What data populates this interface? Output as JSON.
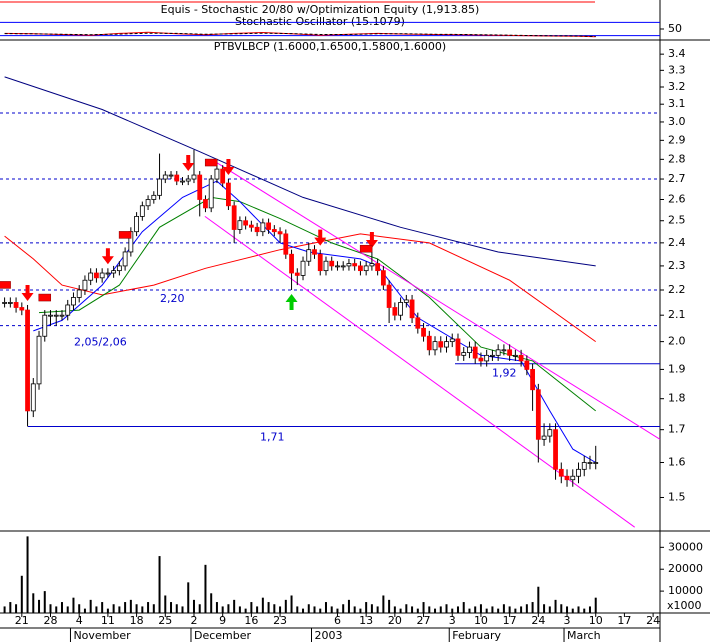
{
  "chart_data": [
    {
      "type": "line",
      "title": "Equis - Stochastic 20/80  w/Optimization Equity (1,913.85)",
      "subtitle": "Stochastic Oscillator (15.1079)",
      "xlim": [
        -0.8,
        114.2
      ],
      "ylim": [
        0,
        100
      ],
      "yticks": [
        50
      ],
      "levels": [
        20,
        80
      ],
      "x": [
        0,
        5,
        10,
        15,
        20,
        25,
        30,
        35,
        40,
        45,
        50,
        55,
        60,
        65,
        70,
        75,
        80,
        85,
        90,
        95,
        100,
        103
      ],
      "series": [
        {
          "color": "#ff0000",
          "values": [
            30,
            28,
            25,
            22,
            30,
            35,
            28,
            24,
            30,
            34,
            28,
            22,
            26,
            30,
            27,
            25,
            24,
            22,
            20,
            18,
            17,
            15
          ]
        },
        {
          "color": "#000000",
          "dashed": true,
          "values": [
            29,
            28,
            26,
            24,
            27,
            31,
            30,
            26,
            28,
            31,
            29,
            25,
            25,
            28,
            28,
            26,
            25,
            23,
            21,
            19,
            18,
            16
          ]
        }
      ]
    },
    {
      "type": "candlestick",
      "title": "PTBVLBCP (1.6000,1.6500,1.5800,1.6000)",
      "log": true,
      "xlim": [
        -0.8,
        114.2
      ],
      "ylim": [
        1.41,
        3.49
      ],
      "yticks": [
        1.5,
        1.6,
        1.7,
        1.8,
        1.9,
        {
          "value": 2,
          "label": "2.0"
        },
        2.1,
        2.2,
        2.3,
        2.4,
        2.5,
        2.6,
        2.7,
        2.8,
        2.9,
        {
          "value": 3,
          "label": "3.0"
        },
        3.1,
        3.2,
        3.3,
        3.4
      ],
      "up_color": "#ffffff",
      "down_color": "#ff0000",
      "candles": [
        [
          2.15,
          2.17,
          2.13,
          2.15
        ],
        [
          2.15,
          2.17,
          2.13,
          2.15
        ],
        [
          2.15,
          2.17,
          2.11,
          2.13
        ],
        [
          2.13,
          2.15,
          2.1,
          2.12
        ],
        [
          2.12,
          2.14,
          1.71,
          1.76
        ],
        [
          1.76,
          1.87,
          1.74,
          1.85
        ],
        [
          1.85,
          2.04,
          1.83,
          2.02
        ],
        [
          2.02,
          2.12,
          2.0,
          2.1
        ],
        [
          2.1,
          2.12,
          2.06,
          2.1
        ],
        [
          2.1,
          2.12,
          2.06,
          2.1
        ],
        [
          2.1,
          2.12,
          2.08,
          2.1
        ],
        [
          2.1,
          2.16,
          2.08,
          2.14
        ],
        [
          2.14,
          2.19,
          2.12,
          2.17
        ],
        [
          2.17,
          2.22,
          2.15,
          2.2
        ],
        [
          2.2,
          2.26,
          2.18,
          2.24
        ],
        [
          2.24,
          2.29,
          2.22,
          2.27
        ],
        [
          2.27,
          2.29,
          2.23,
          2.25
        ],
        [
          2.25,
          2.29,
          2.23,
          2.27
        ],
        [
          2.27,
          2.29,
          2.25,
          2.27
        ],
        [
          2.27,
          2.3,
          2.25,
          2.28
        ],
        [
          2.28,
          2.32,
          2.26,
          2.3
        ],
        [
          2.3,
          2.38,
          2.28,
          2.36
        ],
        [
          2.36,
          2.47,
          2.34,
          2.45
        ],
        [
          2.45,
          2.54,
          2.43,
          2.52
        ],
        [
          2.52,
          2.59,
          2.5,
          2.57
        ],
        [
          2.57,
          2.62,
          2.55,
          2.6
        ],
        [
          2.6,
          2.64,
          2.58,
          2.62
        ],
        [
          2.62,
          2.83,
          2.6,
          2.7
        ],
        [
          2.7,
          2.74,
          2.68,
          2.72
        ],
        [
          2.72,
          2.74,
          2.7,
          2.72
        ],
        [
          2.72,
          2.74,
          2.67,
          2.69
        ],
        [
          2.69,
          2.71,
          2.67,
          2.69
        ],
        [
          2.69,
          2.72,
          2.67,
          2.7
        ],
        [
          2.7,
          2.85,
          2.68,
          2.72
        ],
        [
          2.72,
          2.74,
          2.52,
          2.6
        ],
        [
          2.6,
          2.62,
          2.54,
          2.56
        ],
        [
          2.56,
          2.72,
          2.54,
          2.7
        ],
        [
          2.7,
          2.8,
          2.68,
          2.75
        ],
        [
          2.75,
          2.77,
          2.66,
          2.68
        ],
        [
          2.68,
          2.7,
          2.55,
          2.57
        ],
        [
          2.57,
          2.59,
          2.4,
          2.46
        ],
        [
          2.46,
          2.52,
          2.44,
          2.5
        ],
        [
          2.5,
          2.52,
          2.46,
          2.48
        ],
        [
          2.48,
          2.5,
          2.45,
          2.47
        ],
        [
          2.47,
          2.49,
          2.43,
          2.45
        ],
        [
          2.45,
          2.51,
          2.43,
          2.49
        ],
        [
          2.49,
          2.51,
          2.44,
          2.46
        ],
        [
          2.46,
          2.48,
          2.43,
          2.45
        ],
        [
          2.45,
          2.47,
          2.4,
          2.44
        ],
        [
          2.44,
          2.46,
          2.33,
          2.35
        ],
        [
          2.35,
          2.37,
          2.2,
          2.27
        ],
        [
          2.27,
          2.29,
          2.22,
          2.26
        ],
        [
          2.26,
          2.34,
          2.24,
          2.32
        ],
        [
          2.32,
          2.4,
          2.3,
          2.37
        ],
        [
          2.37,
          2.39,
          2.33,
          2.35
        ],
        [
          2.35,
          2.37,
          2.26,
          2.28
        ],
        [
          2.28,
          2.34,
          2.26,
          2.32
        ],
        [
          2.32,
          2.34,
          2.28,
          2.3
        ],
        [
          2.3,
          2.32,
          2.28,
          2.3
        ],
        [
          2.3,
          2.32,
          2.28,
          2.3
        ],
        [
          2.3,
          2.33,
          2.28,
          2.31
        ],
        [
          2.31,
          2.33,
          2.28,
          2.3
        ],
        [
          2.3,
          2.32,
          2.26,
          2.28
        ],
        [
          2.28,
          2.32,
          2.26,
          2.3
        ],
        [
          2.3,
          2.36,
          2.28,
          2.31
        ],
        [
          2.31,
          2.33,
          2.26,
          2.28
        ],
        [
          2.28,
          2.3,
          2.2,
          2.22
        ],
        [
          2.22,
          2.24,
          2.07,
          2.13
        ],
        [
          2.13,
          2.15,
          2.08,
          2.1
        ],
        [
          2.1,
          2.17,
          2.08,
          2.15
        ],
        [
          2.15,
          2.18,
          2.13,
          2.16
        ],
        [
          2.16,
          2.18,
          2.07,
          2.09
        ],
        [
          2.09,
          2.11,
          2.03,
          2.05
        ],
        [
          2.05,
          2.07,
          2.0,
          2.02
        ],
        [
          2.02,
          2.04,
          1.95,
          1.97
        ],
        [
          1.97,
          2.02,
          1.95,
          2.0
        ],
        [
          2.0,
          2.02,
          1.96,
          1.98
        ],
        [
          1.98,
          2.02,
          1.96,
          2.0
        ],
        [
          2.0,
          2.03,
          1.98,
          2.01
        ],
        [
          2.01,
          2.03,
          1.93,
          1.95
        ],
        [
          1.95,
          1.98,
          1.93,
          1.96
        ],
        [
          1.96,
          2.0,
          1.94,
          1.98
        ],
        [
          1.98,
          2.0,
          1.92,
          1.94
        ],
        [
          1.94,
          1.96,
          1.91,
          1.93
        ],
        [
          1.93,
          1.97,
          1.91,
          1.95
        ],
        [
          1.95,
          1.97,
          1.93,
          1.95
        ],
        [
          1.95,
          1.99,
          1.93,
          1.97
        ],
        [
          1.97,
          1.99,
          1.95,
          1.97
        ],
        [
          1.97,
          1.99,
          1.93,
          1.95
        ],
        [
          1.95,
          1.97,
          1.93,
          1.95
        ],
        [
          1.95,
          1.97,
          1.91,
          1.93
        ],
        [
          1.93,
          1.95,
          1.88,
          1.9
        ],
        [
          1.9,
          1.92,
          1.76,
          1.83
        ],
        [
          1.83,
          1.85,
          1.6,
          1.67
        ],
        [
          1.67,
          1.72,
          1.65,
          1.68
        ],
        [
          1.68,
          1.72,
          1.66,
          1.7
        ],
        [
          1.7,
          1.72,
          1.55,
          1.58
        ],
        [
          1.58,
          1.6,
          1.54,
          1.56
        ],
        [
          1.56,
          1.58,
          1.53,
          1.55
        ],
        [
          1.55,
          1.58,
          1.53,
          1.56
        ],
        [
          1.56,
          1.6,
          1.54,
          1.58
        ],
        [
          1.58,
          1.62,
          1.56,
          1.6
        ],
        [
          1.6,
          1.62,
          1.58,
          1.6
        ],
        [
          1.6,
          1.65,
          1.58,
          1.6
        ]
      ],
      "lines": [
        {
          "color": "#000080",
          "x": [
            0,
            17,
            34,
            52,
            69,
            86,
            103
          ],
          "values": [
            3.26,
            3.07,
            2.84,
            2.61,
            2.47,
            2.36,
            2.3
          ]
        },
        {
          "color": "#ff0000",
          "x": [
            0,
            5,
            10,
            17,
            26,
            35,
            48,
            62,
            74,
            88,
            103
          ],
          "values": [
            2.43,
            2.33,
            2.22,
            2.18,
            2.22,
            2.29,
            2.37,
            2.44,
            2.4,
            2.24,
            2.0
          ]
        },
        {
          "color": "#008000",
          "x": [
            6,
            13,
            20,
            27,
            36,
            41,
            48,
            57,
            65,
            74,
            83,
            92,
            103
          ],
          "values": [
            2.11,
            2.12,
            2.22,
            2.47,
            2.61,
            2.59,
            2.51,
            2.4,
            2.33,
            2.17,
            1.98,
            1.93,
            1.76
          ]
        },
        {
          "color": "#0000ff",
          "x": [
            5,
            10,
            17,
            24,
            31,
            37,
            41,
            48,
            53,
            62,
            65,
            72,
            83,
            90,
            95,
            99,
            103
          ],
          "values": [
            2.04,
            2.08,
            2.22,
            2.45,
            2.61,
            2.69,
            2.59,
            2.4,
            2.36,
            2.33,
            2.3,
            2.09,
            1.95,
            1.93,
            1.76,
            1.64,
            1.6
          ]
        },
        {
          "color": "#ff00ff",
          "x": [
            36.6,
            114.2
          ],
          "values": [
            2.79,
            1.67
          ]
        },
        {
          "color": "#ff00ff",
          "x": [
            34.9,
            109.8
          ],
          "values": [
            2.52,
            1.42
          ]
        }
      ],
      "levels": [
        {
          "value": 3.05,
          "dotted": true
        },
        {
          "value": 2.7,
          "dotted": true
        },
        {
          "value": 2.4,
          "dotted": true
        },
        {
          "value": 2.2,
          "dotted": true,
          "label": "2,20"
        },
        {
          "value": 2.06,
          "dotted": true,
          "label": "2,05/2,06"
        },
        {
          "value": 1.92,
          "label": "1,92"
        },
        {
          "value": 1.71,
          "label": "1,71"
        }
      ],
      "signals": {
        "down": [
          4,
          18,
          32,
          39,
          55,
          64
        ],
        "up": [
          50
        ],
        "box": [
          0,
          7,
          21,
          36,
          63
        ]
      }
    },
    {
      "type": "bar",
      "color": "#000000",
      "xlim": [
        -0.8,
        114.2
      ],
      "ylim": [
        0,
        37000
      ],
      "yticks": [
        10000,
        20000,
        30000
      ],
      "unit": "x1000",
      "values": [
        3000,
        5000,
        4000,
        17000,
        35000,
        9000,
        6000,
        10000,
        4000,
        3000,
        5000,
        3000,
        7000,
        4000,
        2000,
        6000,
        3000,
        5000,
        2000,
        4000,
        3000,
        5000,
        6000,
        4000,
        3000,
        5000,
        4000,
        26000,
        8000,
        5000,
        4000,
        3000,
        14000,
        6000,
        4000,
        22000,
        9000,
        5000,
        3000,
        4000,
        6000,
        3000,
        2000,
        5000,
        3000,
        7000,
        5000,
        4000,
        3000,
        6000,
        8000,
        3000,
        2000,
        4000,
        3000,
        2000,
        5000,
        3000,
        2000,
        4000,
        6000,
        3000,
        2000,
        5000,
        4000,
        3000,
        8000,
        6000,
        3000,
        2000,
        4000,
        3000,
        2000,
        5000,
        3000,
        2000,
        3000,
        4000,
        2000,
        3000,
        5000,
        2000,
        3000,
        4000,
        2000,
        3000,
        2000,
        4000,
        3000,
        2000,
        3000,
        4000,
        5000,
        12000,
        4000,
        3000,
        6000,
        4000,
        3000,
        2000,
        3000,
        2000,
        3000,
        7000
      ],
      "xticks": [
        {
          "value": 3,
          "label": "21"
        },
        {
          "value": 8,
          "label": "28"
        },
        {
          "value": 13,
          "label": "4"
        },
        {
          "value": 18,
          "label": "11"
        },
        {
          "value": 23,
          "label": "18"
        },
        {
          "value": 28,
          "label": "25"
        },
        {
          "value": 33,
          "label": "2"
        },
        {
          "value": 38,
          "label": "9"
        },
        {
          "value": 43,
          "label": "16"
        },
        {
          "value": 48,
          "label": "23"
        },
        {
          "value": 58,
          "label": "6"
        },
        {
          "value": 63,
          "label": "13"
        },
        {
          "value": 68,
          "label": "20"
        },
        {
          "value": 73,
          "label": "27"
        },
        {
          "value": 78,
          "label": "3"
        },
        {
          "value": 83,
          "label": "10"
        },
        {
          "value": 88,
          "label": "17"
        },
        {
          "value": 93,
          "label": "24"
        },
        {
          "value": 98,
          "label": "3"
        },
        {
          "value": 103,
          "label": "10"
        },
        {
          "value": 108,
          "label": "17"
        },
        {
          "value": 113,
          "label": "24"
        }
      ],
      "months": [
        {
          "value": 12,
          "label": "November"
        },
        {
          "value": 33,
          "label": "December"
        },
        {
          "value": 54,
          "label": "2003"
        },
        {
          "value": 78,
          "label": "February"
        },
        {
          "value": 98,
          "label": "March"
        }
      ]
    }
  ]
}
